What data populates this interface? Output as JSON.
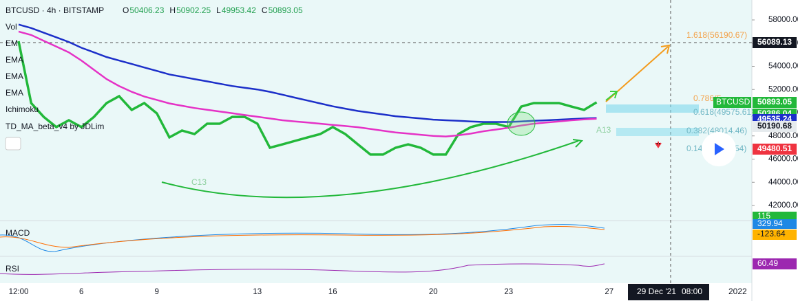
{
  "chart_data": {
    "type": "line",
    "symbol": "BTCUSD · 4h · BITSTAMP",
    "ohlc": [
      {
        "label": "O",
        "value": 50406.23
      },
      {
        "label": "H",
        "value": 50902.25
      },
      {
        "label": "L",
        "value": 49953.42
      },
      {
        "label": "C",
        "value": 50893.05
      }
    ],
    "categories": [
      "12:00",
      null,
      null,
      null,
      null,
      "6",
      null,
      null,
      null,
      null,
      null,
      "9",
      null,
      null,
      null,
      null,
      null,
      null,
      null,
      "13",
      null,
      null,
      null,
      null,
      null,
      "16",
      null,
      null,
      null,
      null,
      null,
      null,
      null,
      "20",
      null,
      null,
      null,
      null,
      null,
      "23",
      null,
      null,
      null,
      null,
      null,
      null,
      null,
      "27"
    ],
    "series": [
      {
        "name": "TD_MA_beta_v4 by JDLim",
        "color": "#22b83a",
        "values": [
          56160,
          50830,
          49640,
          48760,
          49350,
          48760,
          49640,
          50830,
          51420,
          50240,
          50830,
          49940,
          47870,
          48460,
          48160,
          49050,
          49050,
          49640,
          49640,
          49050,
          46980,
          47270,
          47570,
          47870,
          48160,
          48760,
          48160,
          47270,
          46390,
          46390,
          46980,
          47270,
          46980,
          46390,
          46390,
          48160,
          48760,
          49050,
          49050,
          48760,
          50530,
          50830,
          50830,
          50830,
          50530,
          50240,
          50893,
          null
        ]
      },
      {
        "name": "EMA",
        "color": "#1c2fc9",
        "values": [
          57600,
          57300,
          56900,
          56500,
          56100,
          55600,
          55200,
          54800,
          54500,
          54200,
          53900,
          53600,
          53300,
          53100,
          52900,
          52700,
          52500,
          52300,
          52150,
          52000,
          51800,
          51550,
          51300,
          51050,
          50800,
          50550,
          50350,
          50150,
          50000,
          49850,
          49700,
          49600,
          49500,
          49400,
          49350,
          49300,
          49250,
          49200,
          49200,
          49200,
          49250,
          49300,
          49350,
          49400,
          49450,
          49500,
          49535,
          null
        ]
      },
      {
        "name": "EMA",
        "color": "#e532c6",
        "values": [
          57000,
          56700,
          56200,
          55700,
          55200,
          54500,
          53700,
          52900,
          52300,
          51800,
          51400,
          51100,
          50800,
          50600,
          50400,
          50250,
          50100,
          49950,
          49800,
          49650,
          49500,
          49350,
          49250,
          49150,
          49050,
          48950,
          48850,
          48750,
          48600,
          48450,
          48300,
          48200,
          48100,
          48000,
          47950,
          48050,
          48200,
          48400,
          48550,
          48700,
          48900,
          49050,
          49150,
          49250,
          49350,
          49420,
          49480,
          null
        ]
      }
    ],
    "ylim": [
      40756,
      59718
    ],
    "yticks": [
      {
        "value": 42000,
        "label": "42000.00"
      },
      {
        "value": 44000,
        "label": "44000.00"
      },
      {
        "value": 46000,
        "label": "46000.00"
      },
      {
        "value": 48000,
        "label": "48000.00"
      },
      {
        "value": 50000,
        "label": "50000.00"
      },
      {
        "value": 52000,
        "label": "52000.00"
      },
      {
        "value": 54000,
        "label": "54000.00"
      },
      {
        "value": 56000,
        "label": "56000.00"
      },
      {
        "value": 58000,
        "label": "58000.00"
      }
    ],
    "grid": false,
    "price_labels": [
      {
        "value": 56089.13,
        "color": "#131722"
      },
      {
        "value": 50893.05,
        "color": "#22b83a"
      },
      {
        "value": 50386.04,
        "color": "#22b83a"
      },
      {
        "value": 49535.24,
        "color": "#1c2fc9"
      },
      {
        "value": 50190.68,
        "color": "#e6ebee"
      },
      {
        "value": 49480.51,
        "color": "#ef3340"
      }
    ],
    "symbol_tag": "BTCUSD",
    "indicators": [
      "Vol",
      "EM",
      "EMA",
      "EMA",
      "EMA",
      "Ichimoku",
      "TD_MA_beta_v4 by JDLim"
    ],
    "fib_labels": [
      "1.618(56190.67)",
      "0.786(5",
      "0.618(49575.61)",
      "0.382(48014.46)",
      "0.14",
      "54)"
    ],
    "annotations": [
      "C13",
      "A13"
    ],
    "volume_label": 115,
    "macd": {
      "title": "MACD",
      "values": [
        329.94,
        -123.64
      ]
    },
    "rsi": {
      "title": "RSI",
      "value": 60.49
    },
    "crosshair": {
      "date": "29 Dec '21",
      "time": "08:00"
    },
    "year_label": 2022
  }
}
